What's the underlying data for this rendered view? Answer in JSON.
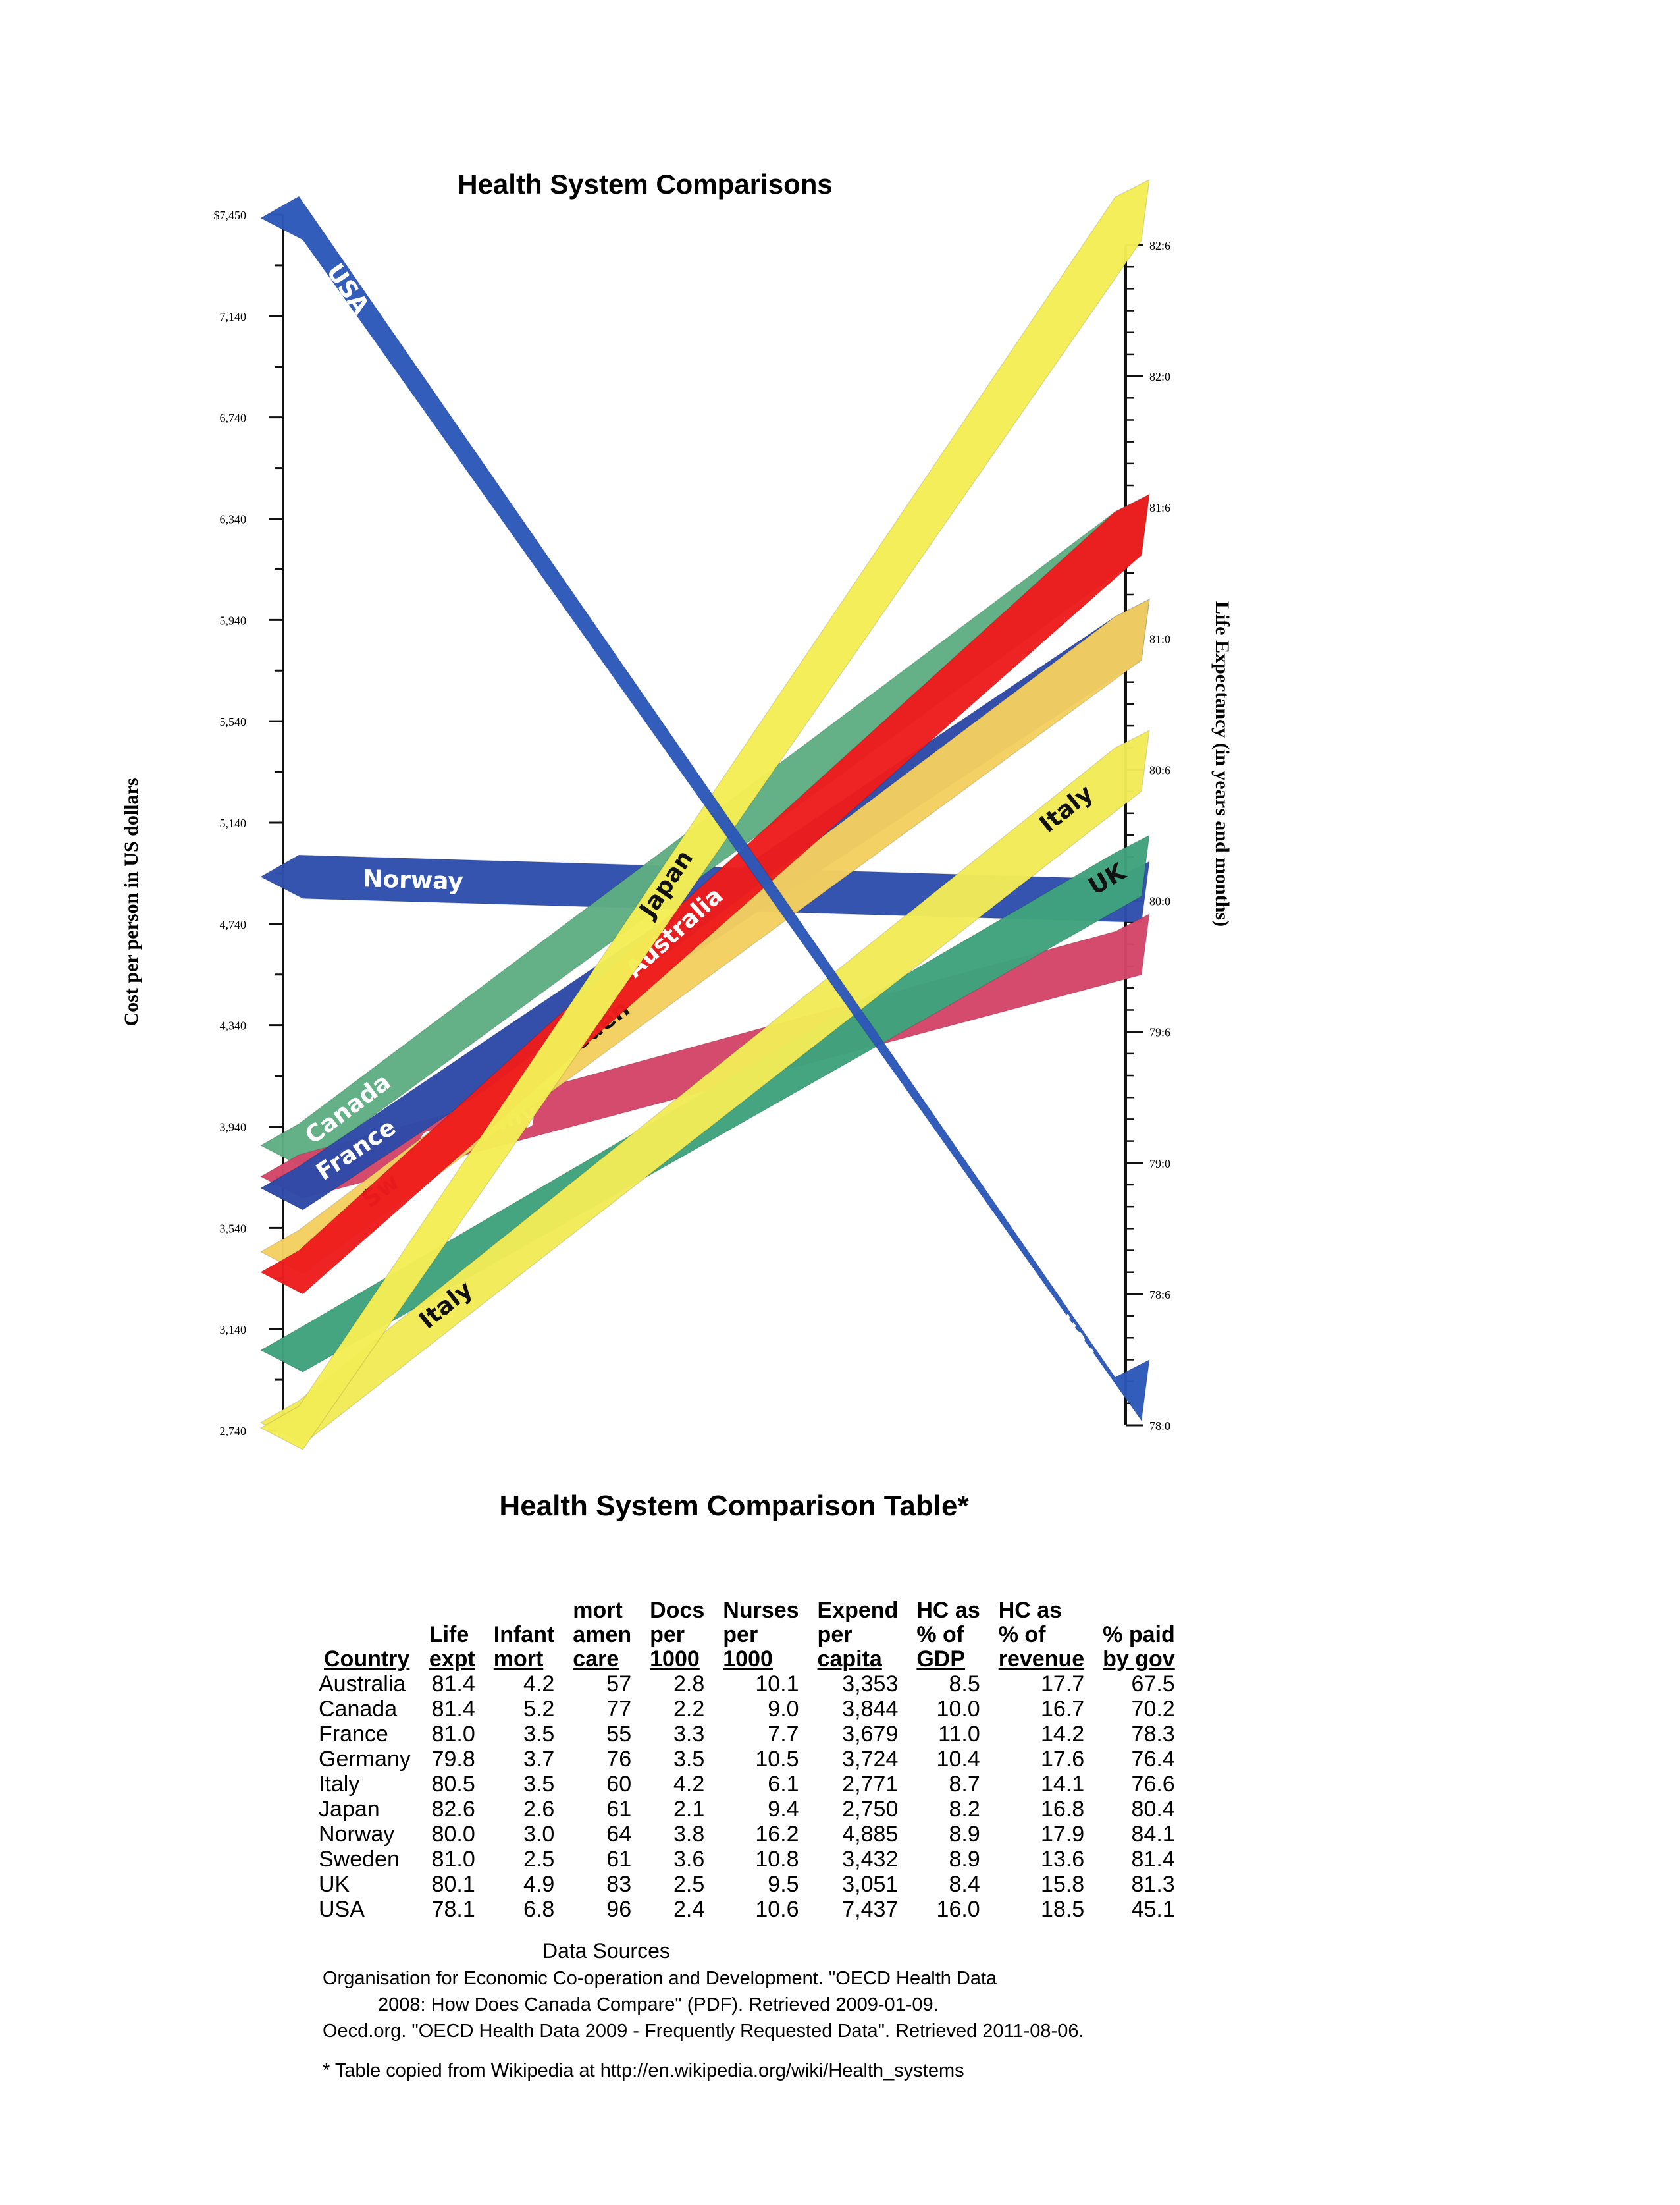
{
  "chart_data": {
    "type": "slope",
    "title": "Health System Comparisons",
    "y_left_label": "Cost per person in US dollars",
    "y_right_label": "Life Expectancy (in years and months)",
    "y_left_ticks": [
      "$7,450",
      "7,140",
      "6,740",
      "6,340",
      "5,940",
      "5,540",
      "5,140",
      "4,740",
      "4,340",
      "3,940",
      "3,540",
      "3,140",
      "2,740"
    ],
    "y_left_range": [
      2740,
      7450
    ],
    "y_right_ticks": [
      "82:6",
      "82:0",
      "81:6",
      "81:0",
      "80:6",
      "80:0",
      "79:6",
      "79:0",
      "78:6",
      "78:0"
    ],
    "y_right_range": [
      78.0,
      82.5
    ],
    "series": [
      {
        "name": "Norway",
        "cost": 4885,
        "life": 80.0,
        "color": "#2f4fae",
        "labels": [
          "Norway"
        ]
      },
      {
        "name": "Canada",
        "cost": 3844,
        "life": 81.4,
        "color": "#5fae84",
        "labels": [
          "Canada"
        ]
      },
      {
        "name": "Germany",
        "cost": 3724,
        "life": 79.8,
        "color": "#d4466a",
        "labels": [
          "Germany"
        ]
      },
      {
        "name": "France",
        "cost": 3679,
        "life": 81.0,
        "color": "#2e4aa8",
        "labels": [
          "France"
        ]
      },
      {
        "name": "Sweden",
        "cost": 3432,
        "life": 81.0,
        "color": "#f4d060",
        "labels": [
          "Sw",
          "Sweden"
        ]
      },
      {
        "name": "Australia",
        "cost": 3353,
        "life": 81.4,
        "color": "#ee1c1c",
        "labels": [
          "Australia"
        ]
      },
      {
        "name": "UK",
        "cost": 3051,
        "life": 80.1,
        "color": "#3fa37d",
        "labels": [
          "UK"
        ]
      },
      {
        "name": "Italy",
        "cost": 2771,
        "life": 80.5,
        "color": "#f2ec58",
        "labels": [
          "Italy",
          "Italy"
        ]
      },
      {
        "name": "Japan",
        "cost": 2750,
        "life": 82.6,
        "color": "#f4ee55",
        "labels": [
          "Japan"
        ]
      },
      {
        "name": "USA",
        "cost": 7437,
        "life": 78.1,
        "color": "#2c58b8",
        "labels": [
          "USA",
          "USA"
        ]
      }
    ]
  },
  "table": {
    "title": "Health System Comparison Table*",
    "headers": [
      {
        "top": [
          "",
          "",
          ""
        ],
        "bottom": "Country"
      },
      {
        "top": [
          "",
          "",
          "Life"
        ],
        "bottom": "expt"
      },
      {
        "top": [
          "",
          "",
          "Infant"
        ],
        "bottom": "mort"
      },
      {
        "top": [
          "",
          "mort",
          "amen"
        ],
        "bottom": "care"
      },
      {
        "top": [
          "",
          "Docs",
          "per"
        ],
        "bottom": "1000"
      },
      {
        "top": [
          "",
          "Nurses",
          "per"
        ],
        "bottom": "1000"
      },
      {
        "top": [
          "",
          "Expend",
          "per"
        ],
        "bottom": "capita"
      },
      {
        "top": [
          "",
          "HC as",
          "% of"
        ],
        "bottom": "GDP"
      },
      {
        "top": [
          "",
          "HC as",
          "% of"
        ],
        "bottom": "revenue"
      },
      {
        "top": [
          "",
          "",
          "% paid"
        ],
        "bottom": "by gov"
      }
    ],
    "rows": [
      [
        "Australia",
        "81.4",
        "4.2",
        "57",
        "2.8",
        "10.1",
        "3,353",
        "8.5",
        "17.7",
        "67.5"
      ],
      [
        "Canada",
        "81.4",
        "5.2",
        "77",
        "2.2",
        "9.0",
        "3,844",
        "10.0",
        "16.7",
        "70.2"
      ],
      [
        "France",
        "81.0",
        "3.5",
        "55",
        "3.3",
        "7.7",
        "3,679",
        "11.0",
        "14.2",
        "78.3"
      ],
      [
        "Germany",
        "79.8",
        "3.7",
        "76",
        "3.5",
        "10.5",
        "3,724",
        "10.4",
        "17.6",
        "76.4"
      ],
      [
        "Italy",
        "80.5",
        "3.5",
        "60",
        "4.2",
        "6.1",
        "2,771",
        "8.7",
        "14.1",
        "76.6"
      ],
      [
        "Japan",
        "82.6",
        "2.6",
        "61",
        "2.1",
        "9.4",
        "2,750",
        "8.2",
        "16.8",
        "80.4"
      ],
      [
        "Norway",
        "80.0",
        "3.0",
        "64",
        "3.8",
        "16.2",
        "4,885",
        "8.9",
        "17.9",
        "84.1"
      ],
      [
        "Sweden",
        "81.0",
        "2.5",
        "61",
        "3.6",
        "10.8",
        "3,432",
        "8.9",
        "13.6",
        "81.4"
      ],
      [
        "UK",
        "80.1",
        "4.9",
        "83",
        "2.5",
        "9.5",
        "3,051",
        "8.4",
        "15.8",
        "81.3"
      ],
      [
        "USA",
        "78.1",
        "6.8",
        "96",
        "2.4",
        "10.6",
        "7,437",
        "16.0",
        "18.5",
        "45.1"
      ]
    ]
  },
  "sources": {
    "title": "Data Sources",
    "line1": "Organisation for Economic Co-operation and Development. \"OECD Health Data",
    "line2": "2008: How Does Canada Compare\" (PDF). Retrieved 2009-01-09.",
    "line3": "Oecd.org.  \"OECD Health Data 2009 - Frequently Requested Data\".  Retrieved 2011-08-06."
  },
  "footnote": "* Table copied from Wikipedia at http://en.wikipedia.org/wiki/Health_systems"
}
